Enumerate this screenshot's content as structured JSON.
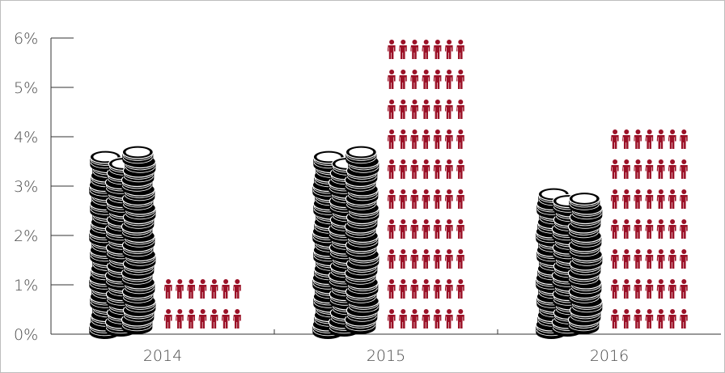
{
  "chart_data": {
    "type": "bar",
    "title": "",
    "xlabel": "",
    "ylabel": "",
    "categories": [
      "2014",
      "2015",
      "2016"
    ],
    "series": [
      {
        "icon": "coin-stack-icon",
        "color": "#000000",
        "values": [
          3.9,
          3.9,
          3.0
        ]
      },
      {
        "icon": "person-icon",
        "color": "#9b1127",
        "values": [
          1.1,
          6.0,
          4.2
        ]
      }
    ],
    "ylim": [
      0,
      6
    ],
    "yticks": [
      0,
      1,
      2,
      3,
      4,
      5,
      6
    ],
    "ytick_labels": [
      "0%",
      "1%",
      "2%",
      "3%",
      "4%",
      "5%",
      "6%"
    ],
    "grid": false,
    "legend": "none"
  }
}
